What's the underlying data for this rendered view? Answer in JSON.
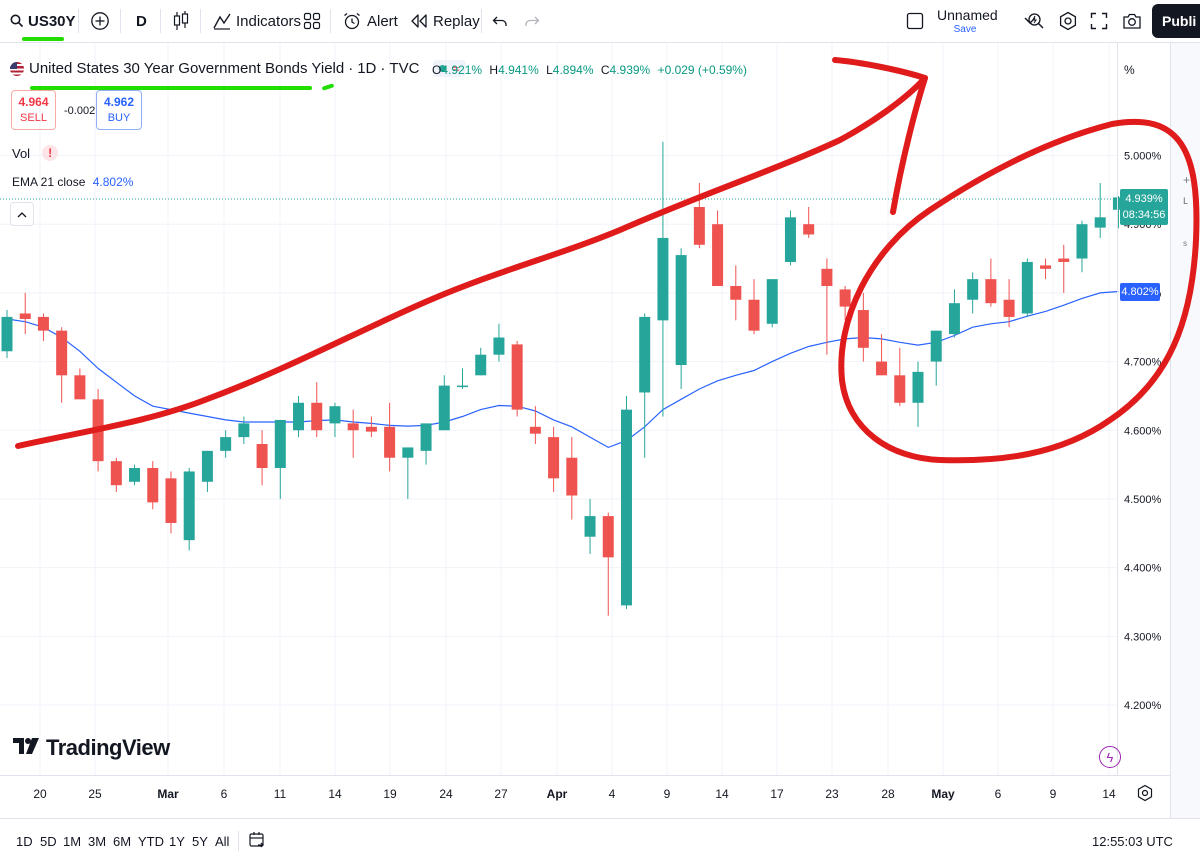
{
  "toolbar": {
    "symbol": "US30Y",
    "interval": "D",
    "indicators_label": "Indicators",
    "alert_label": "Alert",
    "replay_label": "Replay",
    "layout_name": "Unnamed",
    "save_label": "Save",
    "publish_label": "Publi"
  },
  "legend": {
    "title": "United States 30 Year Government Bonds Yield",
    "interval": "1D",
    "source": "TVC",
    "open_label": "O",
    "open": "4.921%",
    "high_label": "H",
    "high": "4.941%",
    "low_label": "L",
    "low": "4.894%",
    "close_label": "C",
    "close": "4.939%",
    "change": "+0.029 (+0.59%)",
    "sell_price": "4.964",
    "sell_label": "SELL",
    "spread": "-0.002",
    "buy_price": "4.962",
    "buy_label": "BUY",
    "vol_label": "Vol",
    "ema_label": "EMA 21 close",
    "ema_value": "4.802%"
  },
  "price_tags": {
    "last": "4.939%",
    "countdown": "08:34:56",
    "ema": "4.802%",
    "unit": "%"
  },
  "logo_text": "TradingView",
  "ranges": [
    "1D",
    "5D",
    "1M",
    "3M",
    "6M",
    "YTD",
    "1Y",
    "5Y",
    "All"
  ],
  "clock": "12:55:03 UTC",
  "colors": {
    "up": "#26a69a",
    "down": "#ef5350",
    "ema": "#2962ff",
    "annotation": "#e01b1b",
    "underline": "#22dd00"
  },
  "chart_data": {
    "type": "candlestick",
    "y_ticks": [
      "4.200%",
      "4.300%",
      "4.400%",
      "4.500%",
      "4.600%",
      "4.700%",
      "4.800%",
      "4.900%",
      "5.000%"
    ],
    "ylim": [
      4.14,
      5.12
    ],
    "x_ticks": [
      "20",
      "25",
      "Mar",
      "6",
      "11",
      "14",
      "19",
      "24",
      "27",
      "Apr",
      "4",
      "9",
      "14",
      "17",
      "23",
      "28",
      "May",
      "6",
      "9",
      "14"
    ],
    "candles": [
      {
        "o": 4.715,
        "h": 4.775,
        "l": 4.705,
        "c": 4.765
      },
      {
        "o": 4.77,
        "h": 4.8,
        "l": 4.74,
        "c": 4.762
      },
      {
        "o": 4.765,
        "h": 4.77,
        "l": 4.73,
        "c": 4.745
      },
      {
        "o": 4.745,
        "h": 4.75,
        "l": 4.64,
        "c": 4.68
      },
      {
        "o": 4.68,
        "h": 4.69,
        "l": 4.65,
        "c": 4.645
      },
      {
        "o": 4.645,
        "h": 4.66,
        "l": 4.54,
        "c": 4.555
      },
      {
        "o": 4.555,
        "h": 4.56,
        "l": 4.51,
        "c": 4.52
      },
      {
        "o": 4.525,
        "h": 4.55,
        "l": 4.52,
        "c": 4.545
      },
      {
        "o": 4.545,
        "h": 4.555,
        "l": 4.485,
        "c": 4.495
      },
      {
        "o": 4.53,
        "h": 4.54,
        "l": 4.45,
        "c": 4.465
      },
      {
        "o": 4.44,
        "h": 4.545,
        "l": 4.425,
        "c": 4.54
      },
      {
        "o": 4.525,
        "h": 4.57,
        "l": 4.51,
        "c": 4.57
      },
      {
        "o": 4.57,
        "h": 4.6,
        "l": 4.56,
        "c": 4.59
      },
      {
        "o": 4.59,
        "h": 4.62,
        "l": 4.58,
        "c": 4.61
      },
      {
        "o": 4.58,
        "h": 4.6,
        "l": 4.52,
        "c": 4.545
      },
      {
        "o": 4.545,
        "h": 4.615,
        "l": 4.5,
        "c": 4.615
      },
      {
        "o": 4.6,
        "h": 4.65,
        "l": 4.59,
        "c": 4.64
      },
      {
        "o": 4.64,
        "h": 4.67,
        "l": 4.59,
        "c": 4.6
      },
      {
        "o": 4.61,
        "h": 4.64,
        "l": 4.59,
        "c": 4.635
      },
      {
        "o": 4.61,
        "h": 4.63,
        "l": 4.56,
        "c": 4.6
      },
      {
        "o": 4.605,
        "h": 4.62,
        "l": 4.59,
        "c": 4.598
      },
      {
        "o": 4.605,
        "h": 4.64,
        "l": 4.54,
        "c": 4.56
      },
      {
        "o": 4.56,
        "h": 4.575,
        "l": 4.5,
        "c": 4.575
      },
      {
        "o": 4.57,
        "h": 4.61,
        "l": 4.55,
        "c": 4.61
      },
      {
        "o": 4.6,
        "h": 4.68,
        "l": 4.6,
        "c": 4.665
      },
      {
        "o": 4.665,
        "h": 4.69,
        "l": 4.66,
        "c": 4.665
      },
      {
        "o": 4.68,
        "h": 4.72,
        "l": 4.68,
        "c": 4.71
      },
      {
        "o": 4.71,
        "h": 4.755,
        "l": 4.7,
        "c": 4.735
      },
      {
        "o": 4.725,
        "h": 4.73,
        "l": 4.62,
        "c": 4.63
      },
      {
        "o": 4.605,
        "h": 4.635,
        "l": 4.58,
        "c": 4.595
      },
      {
        "o": 4.59,
        "h": 4.605,
        "l": 4.51,
        "c": 4.53
      },
      {
        "o": 4.56,
        "h": 4.59,
        "l": 4.47,
        "c": 4.505
      },
      {
        "o": 4.445,
        "h": 4.5,
        "l": 4.42,
        "c": 4.475
      },
      {
        "o": 4.475,
        "h": 4.48,
        "l": 4.33,
        "c": 4.415
      },
      {
        "o": 4.345,
        "h": 4.65,
        "l": 4.34,
        "c": 4.63
      },
      {
        "o": 4.655,
        "h": 4.77,
        "l": 4.56,
        "c": 4.765
      },
      {
        "o": 4.76,
        "h": 5.02,
        "l": 4.62,
        "c": 4.88
      },
      {
        "o": 4.695,
        "h": 4.865,
        "l": 4.66,
        "c": 4.855
      },
      {
        "o": 4.925,
        "h": 4.96,
        "l": 4.865,
        "c": 4.87
      },
      {
        "o": 4.9,
        "h": 4.92,
        "l": 4.81,
        "c": 4.81
      },
      {
        "o": 4.81,
        "h": 4.84,
        "l": 4.76,
        "c": 4.79
      },
      {
        "o": 4.79,
        "h": 4.82,
        "l": 4.74,
        "c": 4.745
      },
      {
        "o": 4.755,
        "h": 4.82,
        "l": 4.75,
        "c": 4.82
      },
      {
        "o": 4.845,
        "h": 4.92,
        "l": 4.84,
        "c": 4.91
      },
      {
        "o": 4.9,
        "h": 4.925,
        "l": 4.88,
        "c": 4.885
      },
      {
        "o": 4.835,
        "h": 4.85,
        "l": 4.71,
        "c": 4.81
      },
      {
        "o": 4.805,
        "h": 4.81,
        "l": 4.76,
        "c": 4.78
      },
      {
        "o": 4.775,
        "h": 4.8,
        "l": 4.7,
        "c": 4.72
      },
      {
        "o": 4.7,
        "h": 4.74,
        "l": 4.68,
        "c": 4.68
      },
      {
        "o": 4.68,
        "h": 4.72,
        "l": 4.635,
        "c": 4.64
      },
      {
        "o": 4.64,
        "h": 4.7,
        "l": 4.605,
        "c": 4.685
      },
      {
        "o": 4.7,
        "h": 4.745,
        "l": 4.665,
        "c": 4.745
      },
      {
        "o": 4.74,
        "h": 4.805,
        "l": 4.735,
        "c": 4.785
      },
      {
        "o": 4.79,
        "h": 4.83,
        "l": 4.77,
        "c": 4.82
      },
      {
        "o": 4.82,
        "h": 4.85,
        "l": 4.78,
        "c": 4.785
      },
      {
        "o": 4.79,
        "h": 4.82,
        "l": 4.75,
        "c": 4.765
      },
      {
        "o": 4.77,
        "h": 4.85,
        "l": 4.765,
        "c": 4.845
      },
      {
        "o": 4.84,
        "h": 4.85,
        "l": 4.82,
        "c": 4.835
      },
      {
        "o": 4.85,
        "h": 4.87,
        "l": 4.8,
        "c": 4.845
      },
      {
        "o": 4.85,
        "h": 4.905,
        "l": 4.83,
        "c": 4.9
      },
      {
        "o": 4.895,
        "h": 4.96,
        "l": 4.88,
        "c": 4.91
      },
      {
        "o": 4.921,
        "h": 4.941,
        "l": 4.894,
        "c": 4.939
      }
    ],
    "ema21": [
      4.762,
      4.758,
      4.75,
      4.735,
      4.715,
      4.69,
      4.67,
      4.65,
      4.635,
      4.63,
      4.625,
      4.62,
      4.615,
      4.612,
      4.612,
      4.612,
      4.612,
      4.614,
      4.615,
      4.612,
      4.61,
      4.607,
      4.606,
      4.607,
      4.612,
      4.62,
      4.63,
      4.636,
      4.635,
      4.628,
      4.615,
      4.605,
      4.59,
      4.575,
      4.585,
      4.605,
      4.63,
      4.645,
      4.66,
      4.672,
      4.68,
      4.687,
      4.7,
      4.712,
      4.722,
      4.728,
      4.733,
      4.735,
      4.733,
      4.728,
      4.724,
      4.728,
      4.738,
      4.75,
      4.755,
      4.758,
      4.766,
      4.773,
      4.782,
      4.792,
      4.8,
      4.802
    ]
  }
}
